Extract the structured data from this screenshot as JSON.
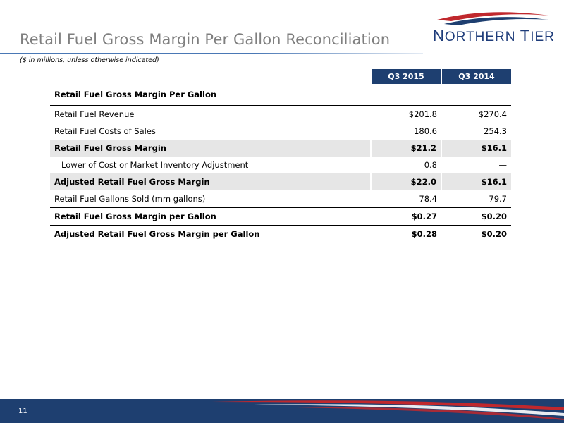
{
  "slide": {
    "title": "Retail Fuel Gross Margin Per Gallon Reconciliation",
    "subtitle": "($ in millions, unless otherwise indicated)",
    "logo_text_first_initial": "N",
    "logo_text_first_rest": "ORTHERN",
    "logo_text_second_initial": "T",
    "logo_text_second_rest": "IER",
    "page_number": "11"
  },
  "colors": {
    "header_navy": "#1e3f70",
    "title_gray": "#7f7f7f",
    "shaded_row": "#e6e6e6",
    "accent_red": "#c0282d"
  },
  "table": {
    "columns": [
      "Q3 2015",
      "Q3 2014"
    ],
    "section_title": "Retail Fuel Gross Margin Per Gallon",
    "rows": [
      {
        "label": "Retail Fuel Revenue",
        "q3_2015": "$201.8",
        "q3_2014": "$270.4"
      },
      {
        "label": "Retail Fuel Costs of Sales",
        "q3_2015": "180.6",
        "q3_2014": "254.3"
      },
      {
        "label": "Retail Fuel Gross Margin",
        "q3_2015": "$21.2",
        "q3_2014": "$16.1"
      },
      {
        "label": "Lower of Cost or Market Inventory Adjustment",
        "q3_2015": "0.8",
        "q3_2014": "—"
      },
      {
        "label": "Adjusted Retail Fuel Gross Margin",
        "q3_2015": "$22.0",
        "q3_2014": "$16.1"
      },
      {
        "label": "Retail Fuel Gallons Sold (mm gallons)",
        "q3_2015": "78.4",
        "q3_2014": "79.7"
      },
      {
        "label": "Retail Fuel Gross Margin per Gallon",
        "q3_2015": "$0.27",
        "q3_2014": "$0.20"
      },
      {
        "label": "Adjusted Retail Fuel Gross Margin per Gallon",
        "q3_2015": "$0.28",
        "q3_2014": "$0.20"
      }
    ]
  }
}
